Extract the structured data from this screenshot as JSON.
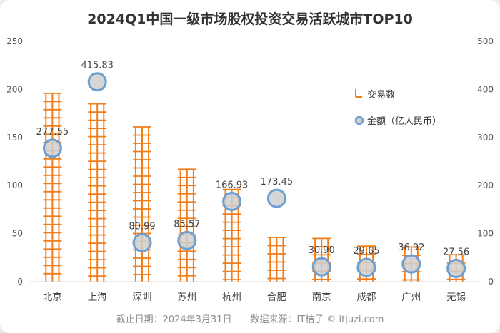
{
  "chart_data": {
    "type": "bar+scatter",
    "title": "2024Q1中国一级市场股权投资交易活跃城市TOP10",
    "categories": [
      "北京",
      "上海",
      "深圳",
      "苏州",
      "杭州",
      "合肥",
      "南京",
      "成都",
      "广州",
      "无锡"
    ],
    "series": [
      {
        "name": "交易数",
        "type": "bar",
        "axis": "left",
        "color": "#f07d1a",
        "values": [
          196,
          185,
          161,
          117,
          96,
          46,
          45,
          37,
          36,
          28
        ]
      },
      {
        "name": "金额（亿人民币）",
        "type": "scatter",
        "axis": "right",
        "color": "#6b9fd4",
        "values": [
          277.55,
          415.83,
          80.99,
          85.57,
          166.93,
          173.45,
          30.9,
          29.65,
          36.92,
          27.56
        ],
        "labels": [
          "277.55",
          "415.83",
          "80.99",
          "85.57",
          "166.93",
          "173.45",
          "30.90",
          "29.65",
          "36.92",
          "27.56"
        ]
      }
    ],
    "left_axis": {
      "ylim": [
        0,
        250
      ],
      "ticks": [
        "0",
        "50",
        "100",
        "150",
        "200",
        "250"
      ]
    },
    "right_axis": {
      "ylim": [
        0,
        500
      ],
      "ticks": [
        "0",
        "100",
        "200",
        "300",
        "400",
        "500"
      ]
    },
    "legend_position": "right",
    "grid": false
  },
  "footer": "截止日期：2024年3月31日　　数据来源：IT桔子 © itjuzi.com"
}
